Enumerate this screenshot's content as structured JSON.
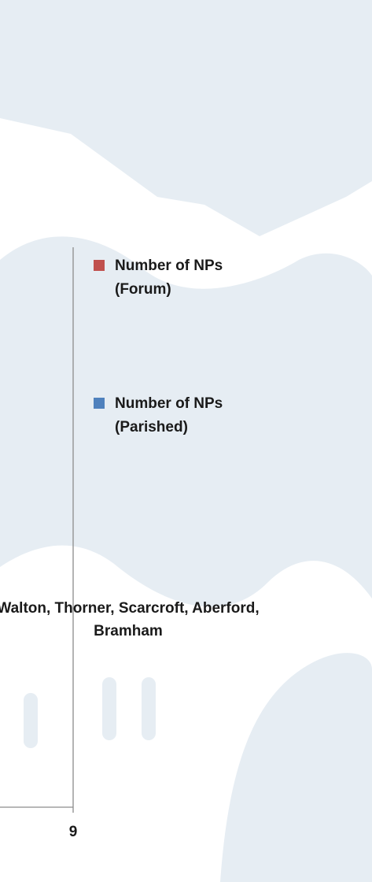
{
  "chart_data": {
    "type": "bar",
    "orientation": "horizontal",
    "categories": [
      "Walton, Thorner, Scarcroft, Aberford, Bramham"
    ],
    "series": [
      {
        "name": "Number of NPs (Forum)",
        "color": "#c0504d"
      },
      {
        "name": "Number of NPs (Parished)",
        "color": "#4f81bd"
      }
    ],
    "xticks": [
      9
    ],
    "legend": "right"
  }
}
